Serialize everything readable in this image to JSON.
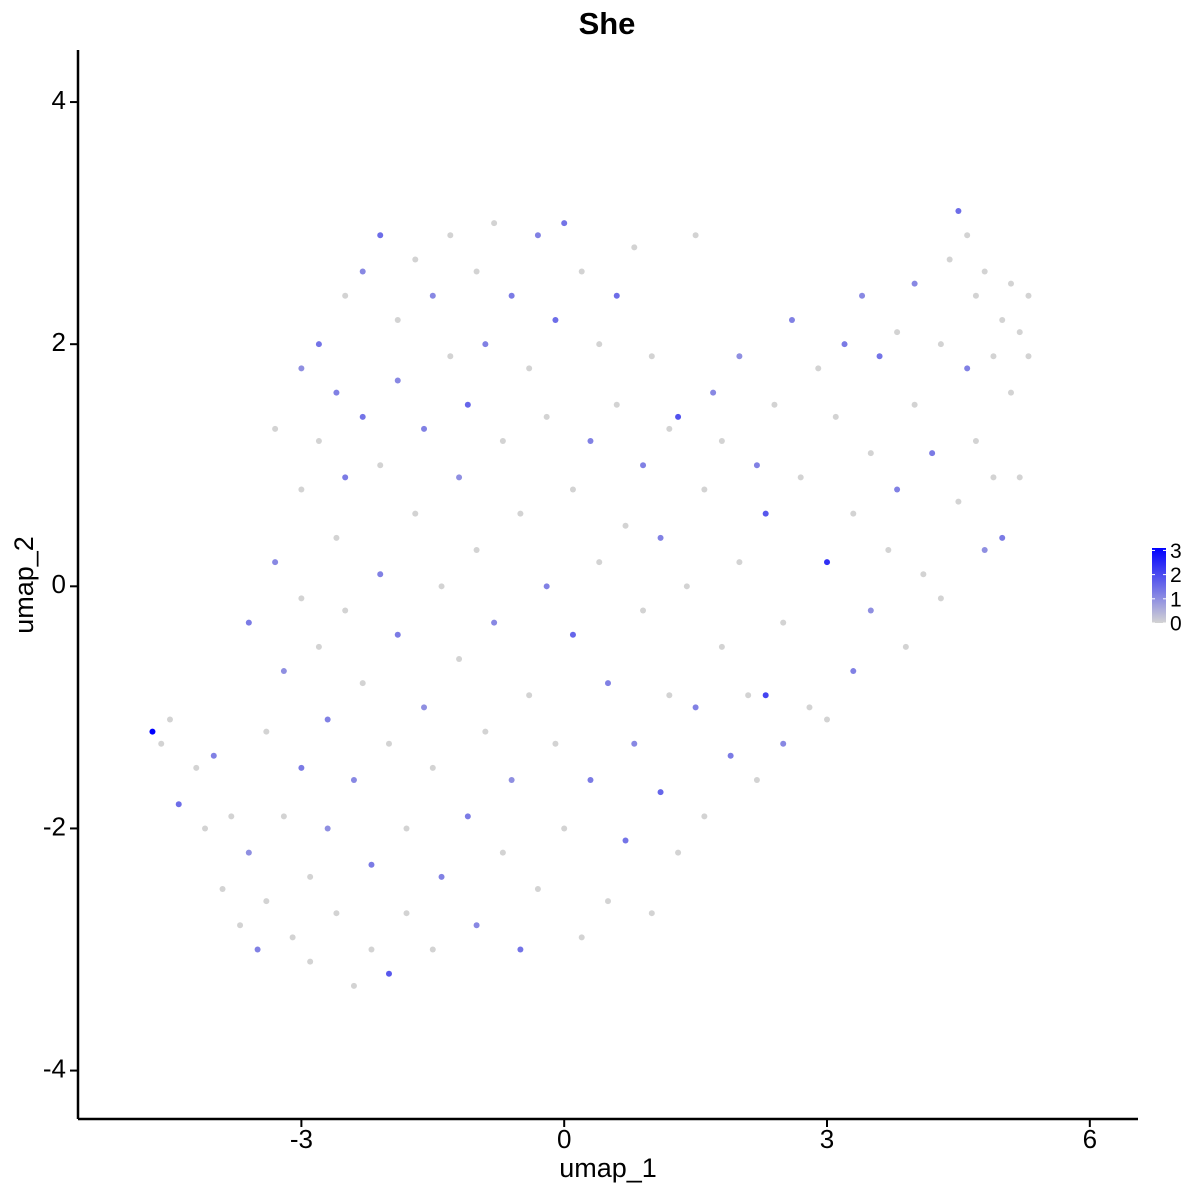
{
  "chart_data": {
    "type": "scatter",
    "title": "She",
    "xlabel": "umap_1",
    "ylabel": "umap_2",
    "xlim": [
      -5.55,
      6.55
    ],
    "xticks": [
      -3,
      0,
      3,
      6
    ],
    "ylim": [
      -4.4,
      4.43
    ],
    "yticks": [
      -4,
      -2,
      0,
      2,
      4
    ],
    "low_color": "#d3d3d3",
    "high_color": "#0000ff",
    "colorlim": [
      0,
      3.1
    ],
    "colorticks": [
      0,
      1,
      2,
      3
    ],
    "x": [
      -4.7,
      -4.6,
      -4.5,
      -4.4,
      -4.2,
      -4.1,
      -4.0,
      -3.9,
      -3.8,
      -3.7,
      -3.6,
      -3.6,
      -3.5,
      -3.4,
      -3.4,
      -3.3,
      -3.3,
      -3.2,
      -3.2,
      -3.1,
      -3.0,
      -3.0,
      -3.0,
      -3.0,
      -2.9,
      -2.9,
      -2.8,
      -2.8,
      -2.8,
      -2.7,
      -2.7,
      -2.6,
      -2.6,
      -2.6,
      -2.5,
      -2.5,
      -2.5,
      -2.4,
      -2.4,
      -2.3,
      -2.3,
      -2.3,
      -2.2,
      -2.2,
      -2.1,
      -2.1,
      -2.1,
      -2.0,
      -2.0,
      -1.9,
      -1.9,
      -1.9,
      -1.8,
      -1.8,
      -1.7,
      -1.7,
      -1.6,
      -1.6,
      -1.5,
      -1.5,
      -1.5,
      -1.4,
      -1.4,
      -1.3,
      -1.3,
      -1.2,
      -1.2,
      -1.1,
      -1.1,
      -1.0,
      -1.0,
      -1.0,
      -0.9,
      -0.9,
      -0.8,
      -0.8,
      -0.7,
      -0.7,
      -0.6,
      -0.6,
      -0.5,
      -0.5,
      -0.4,
      -0.4,
      -0.3,
      -0.3,
      -0.2,
      -0.2,
      -0.1,
      -0.1,
      0.0,
      0.0,
      0.1,
      0.1,
      0.2,
      0.2,
      0.3,
      0.3,
      0.4,
      0.4,
      0.5,
      0.5,
      0.6,
      0.6,
      0.7,
      0.7,
      0.8,
      0.8,
      0.9,
      0.9,
      1.0,
      1.0,
      1.1,
      1.1,
      1.2,
      1.2,
      1.3,
      1.3,
      1.4,
      1.5,
      1.5,
      1.6,
      1.6,
      1.7,
      1.8,
      1.8,
      1.9,
      2.0,
      2.0,
      2.1,
      2.2,
      2.2,
      2.3,
      2.3,
      2.4,
      2.5,
      2.5,
      2.6,
      2.7,
      2.8,
      2.9,
      3.0,
      3.0,
      3.1,
      3.2,
      3.3,
      3.3,
      3.4,
      3.5,
      3.5,
      3.6,
      3.7,
      3.8,
      3.8,
      3.9,
      4.0,
      4.0,
      4.1,
      4.2,
      4.3,
      4.3,
      4.4,
      4.5,
      4.5,
      4.6,
      4.6,
      4.7,
      4.7,
      4.8,
      4.8,
      4.9,
      4.9,
      5.0,
      5.0,
      5.1,
      5.1,
      5.2,
      5.2,
      5.3,
      5.3
    ],
    "y": [
      -1.2,
      -1.3,
      -1.1,
      -1.8,
      -1.5,
      -2.0,
      -1.4,
      -2.5,
      -1.9,
      -2.8,
      -0.3,
      -2.2,
      -3.0,
      -1.2,
      -2.6,
      1.3,
      0.2,
      -0.7,
      -1.9,
      -2.9,
      1.8,
      0.8,
      -0.1,
      -1.5,
      -2.4,
      -3.1,
      2.0,
      1.2,
      -0.5,
      -1.1,
      -2.0,
      1.6,
      0.4,
      -2.7,
      2.4,
      0.9,
      -0.2,
      -1.6,
      -3.3,
      1.4,
      2.6,
      -0.8,
      -2.3,
      -3.0,
      2.9,
      1.0,
      0.1,
      -1.3,
      -3.2,
      2.2,
      1.7,
      -0.4,
      -2.0,
      -2.7,
      2.7,
      0.6,
      1.3,
      -1.0,
      -1.5,
      -3.0,
      2.4,
      0.0,
      -2.4,
      1.9,
      2.9,
      0.9,
      -0.6,
      -1.9,
      1.5,
      2.6,
      -2.8,
      0.3,
      -1.2,
      2.0,
      3.0,
      -0.3,
      1.2,
      -2.2,
      2.4,
      -1.6,
      0.6,
      -3.0,
      1.8,
      -0.9,
      2.9,
      -2.5,
      0.0,
      1.4,
      -1.3,
      2.2,
      3.0,
      -2.0,
      0.8,
      -0.4,
      2.6,
      -2.9,
      1.2,
      -1.6,
      0.2,
      2.0,
      -2.6,
      -0.8,
      2.4,
      1.5,
      -2.1,
      0.5,
      -1.3,
      2.8,
      1.0,
      -0.2,
      -2.7,
      1.9,
      -1.7,
      0.4,
      1.3,
      -0.9,
      1.4,
      -2.2,
      0.0,
      2.9,
      -1.0,
      0.8,
      -1.9,
      1.6,
      -0.5,
      1.2,
      -1.4,
      0.2,
      1.9,
      -0.9,
      1.0,
      -1.6,
      0.6,
      -0.9,
      1.5,
      -0.3,
      -1.3,
      2.2,
      0.9,
      -1.0,
      1.8,
      0.2,
      -1.1,
      1.4,
      2.0,
      0.6,
      -0.7,
      2.4,
      1.1,
      -0.2,
      1.9,
      0.3,
      2.1,
      0.8,
      -0.5,
      1.5,
      2.5,
      0.1,
      1.1,
      2.0,
      -0.1,
      2.7,
      3.1,
      0.7,
      1.8,
      2.9,
      2.4,
      1.2,
      0.3,
      2.6,
      1.9,
      0.9,
      2.2,
      0.4,
      1.6,
      2.5,
      0.9,
      2.1,
      2.4,
      1.9
    ],
    "values": [
      3.1,
      0,
      0,
      1.5,
      0,
      0,
      1.2,
      0,
      0,
      0,
      1.3,
      1.0,
      1.2,
      0,
      0,
      0,
      1.1,
      1.0,
      0,
      0,
      1.0,
      0,
      0,
      1.3,
      0,
      0,
      1.4,
      0,
      0,
      1.2,
      1.0,
      1.2,
      0,
      0,
      0,
      1.3,
      0,
      1.1,
      0,
      1.4,
      1.1,
      0,
      1.3,
      0,
      1.5,
      0,
      1.2,
      0,
      1.8,
      0,
      1.1,
      1.3,
      0,
      0,
      0,
      0,
      1.2,
      1.0,
      0,
      0,
      1.1,
      0,
      1.2,
      0,
      0,
      1.0,
      0,
      1.3,
      1.6,
      0,
      1.1,
      0,
      0,
      1.2,
      0,
      1.1,
      0,
      0,
      1.3,
      1.0,
      0,
      1.4,
      0,
      0,
      1.2,
      0,
      1.2,
      0,
      0,
      1.5,
      1.4,
      0,
      0,
      1.6,
      0,
      0,
      1.2,
      1.3,
      0,
      0,
      0,
      1.2,
      1.5,
      0,
      1.4,
      0,
      1.1,
      0,
      1.2,
      0,
      0,
      0,
      1.6,
      1.2,
      0,
      0,
      1.9,
      0,
      0,
      0,
      1.2,
      0,
      0,
      1.1,
      0,
      0,
      1.3,
      0,
      1.0,
      0,
      1.2,
      0,
      1.8,
      2.1,
      0,
      0,
      1.1,
      1.2,
      0,
      0,
      0,
      2.4,
      0,
      0,
      1.3,
      0,
      1.2,
      1.1,
      0,
      1.0,
      1.4,
      0,
      0,
      1.2,
      0,
      0,
      1.1,
      0,
      1.3,
      0,
      0,
      0,
      1.5,
      0,
      1.2,
      0,
      0,
      0,
      1.0,
      0,
      0,
      0,
      0,
      1.3,
      0,
      0,
      0,
      0,
      0,
      0
    ]
  }
}
